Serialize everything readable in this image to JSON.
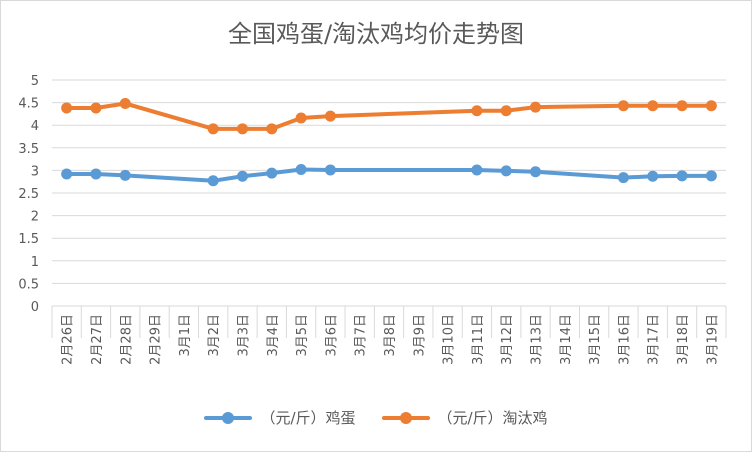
{
  "chart_data": {
    "type": "line",
    "title": "全国鸡蛋/淘汰鸡均价走势图",
    "categories": [
      "2月26日",
      "2月27日",
      "2月28日",
      "2月29日",
      "3月1日",
      "3月2日",
      "3月3日",
      "3月4日",
      "3月5日",
      "3月6日",
      "3月7日",
      "3月8日",
      "3月9日",
      "3月10日",
      "3月11日",
      "3月12日",
      "3月13日",
      "3月14日",
      "3月15日",
      "3月16日",
      "3月17日",
      "3月18日",
      "3月19日"
    ],
    "ylim": [
      0,
      5
    ],
    "yticks": [
      0,
      0.5,
      1,
      1.5,
      2,
      2.5,
      3,
      3.5,
      4,
      4.5,
      5
    ],
    "ytick_labels": [
      "0",
      "0.5",
      "1",
      "1.5",
      "2",
      "2.5",
      "3",
      "3.5",
      "4",
      "4.5",
      "5"
    ],
    "grid": true,
    "legend_position": "bottom",
    "series": [
      {
        "name": "（元/斤）鸡蛋",
        "color": "#5b9bd5",
        "values": [
          2.92,
          2.92,
          2.89,
          null,
          null,
          2.77,
          2.87,
          2.94,
          3.02,
          3.01,
          null,
          null,
          null,
          null,
          3.01,
          2.99,
          2.97,
          null,
          null,
          2.84,
          2.87,
          2.88,
          2.88
        ]
      },
      {
        "name": "（元/斤）淘汰鸡",
        "color": "#ed7d31",
        "values": [
          4.38,
          4.38,
          4.48,
          null,
          null,
          3.92,
          3.92,
          3.92,
          4.16,
          4.2,
          null,
          null,
          null,
          null,
          4.32,
          4.32,
          4.4,
          null,
          null,
          4.43,
          4.43,
          4.43,
          4.43
        ]
      }
    ]
  }
}
